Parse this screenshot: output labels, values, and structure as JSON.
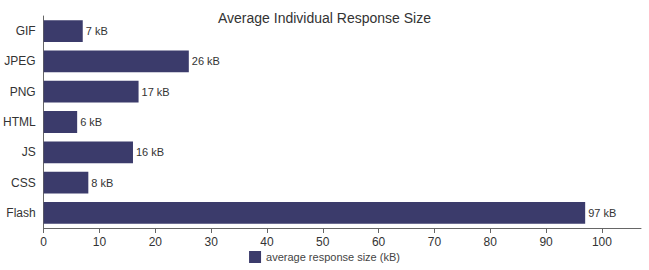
{
  "chart_data": {
    "type": "bar",
    "title": "Average Individual Response Size",
    "orientation": "horizontal",
    "categories": [
      "GIF",
      "JPEG",
      "PNG",
      "HTML",
      "JS",
      "CSS",
      "Flash"
    ],
    "series": [
      {
        "name": "average response size (kB)",
        "color": "#3b3b6b",
        "values": [
          7,
          26,
          17,
          6,
          16,
          8,
          97
        ],
        "value_labels": [
          "7 kB",
          "26 kB",
          "17 kB",
          "6 kB",
          "16 kB",
          "8 kB",
          "97 kB"
        ]
      }
    ],
    "xlim": [
      0,
      107
    ],
    "xticks": [
      0,
      10,
      20,
      30,
      40,
      50,
      60,
      70,
      80,
      90,
      100
    ],
    "grid": false,
    "legend": "bottom",
    "data_labels": true
  }
}
